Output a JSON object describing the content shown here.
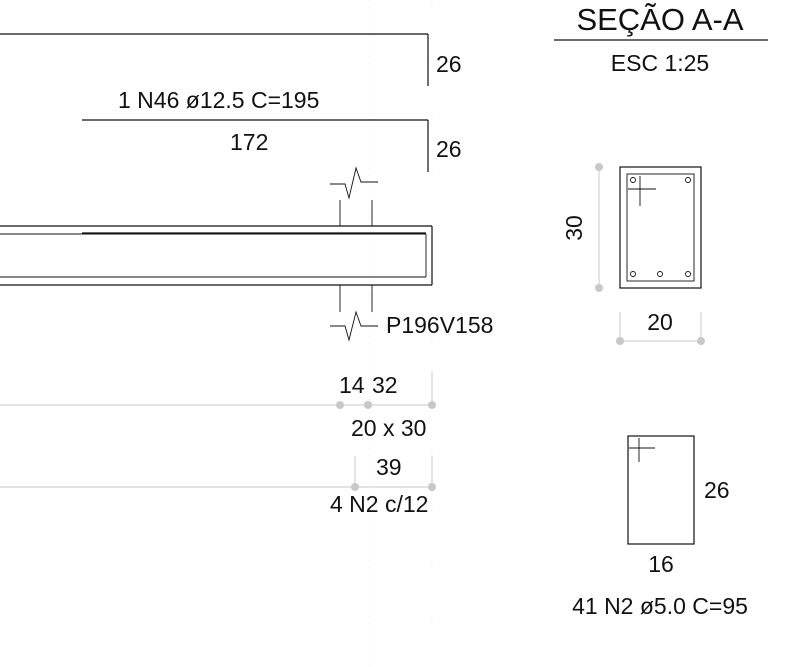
{
  "section": {
    "title": "SEÇÃO A-A",
    "scale": "ESC 1:25",
    "height": "30",
    "width": "20"
  },
  "beam": {
    "top_bar_label": "1 N46 ø12.5  C=195",
    "top_bar_length": "172",
    "hook_top": "26",
    "hook_bottom": "26",
    "pillar_label": "P196V158",
    "dim_a": "14",
    "dim_b": "32",
    "section_size": "20 x 30",
    "dim_c": "39",
    "stirrups": "4 N2 c/12"
  },
  "stirrup": {
    "height": "26",
    "width": "16",
    "label": "41 N2 ø5.0  C=95"
  },
  "colors": {
    "line": "#111111",
    "dimension": "#c8c8c8",
    "background": "#ffffff"
  }
}
